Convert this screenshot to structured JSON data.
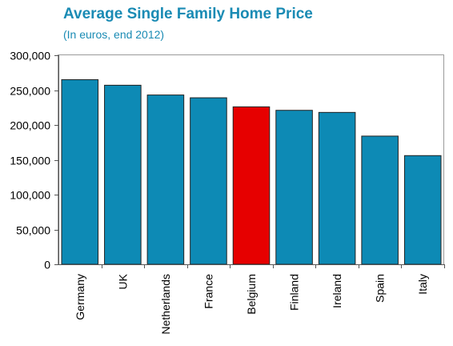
{
  "chart_data": {
    "type": "bar",
    "title": "Average Single Family Home Price",
    "subtitle": "(In euros, end 2012)",
    "categories": [
      "Germany",
      "UK",
      "Netherlands",
      "France",
      "Belgium",
      "Finland",
      "Ireland",
      "Spain",
      "Italy"
    ],
    "values": [
      265000,
      257000,
      243000,
      239000,
      226000,
      221000,
      218000,
      184000,
      156000
    ],
    "highlight_category": "Belgium",
    "colors": {
      "bar": "#0d8ab5",
      "highlight": "#e60000",
      "bar_border": "#222222",
      "title": "#1a8bb4"
    },
    "ylim": [
      0,
      300000
    ],
    "yticks": [
      0,
      50000,
      100000,
      150000,
      200000,
      250000,
      300000
    ],
    "ytick_labels": [
      "0",
      "50,000",
      "100,000",
      "150,000",
      "200,000",
      "250,000",
      "300,000"
    ],
    "grid": false,
    "legend": "none",
    "xlabel": "",
    "ylabel": ""
  }
}
